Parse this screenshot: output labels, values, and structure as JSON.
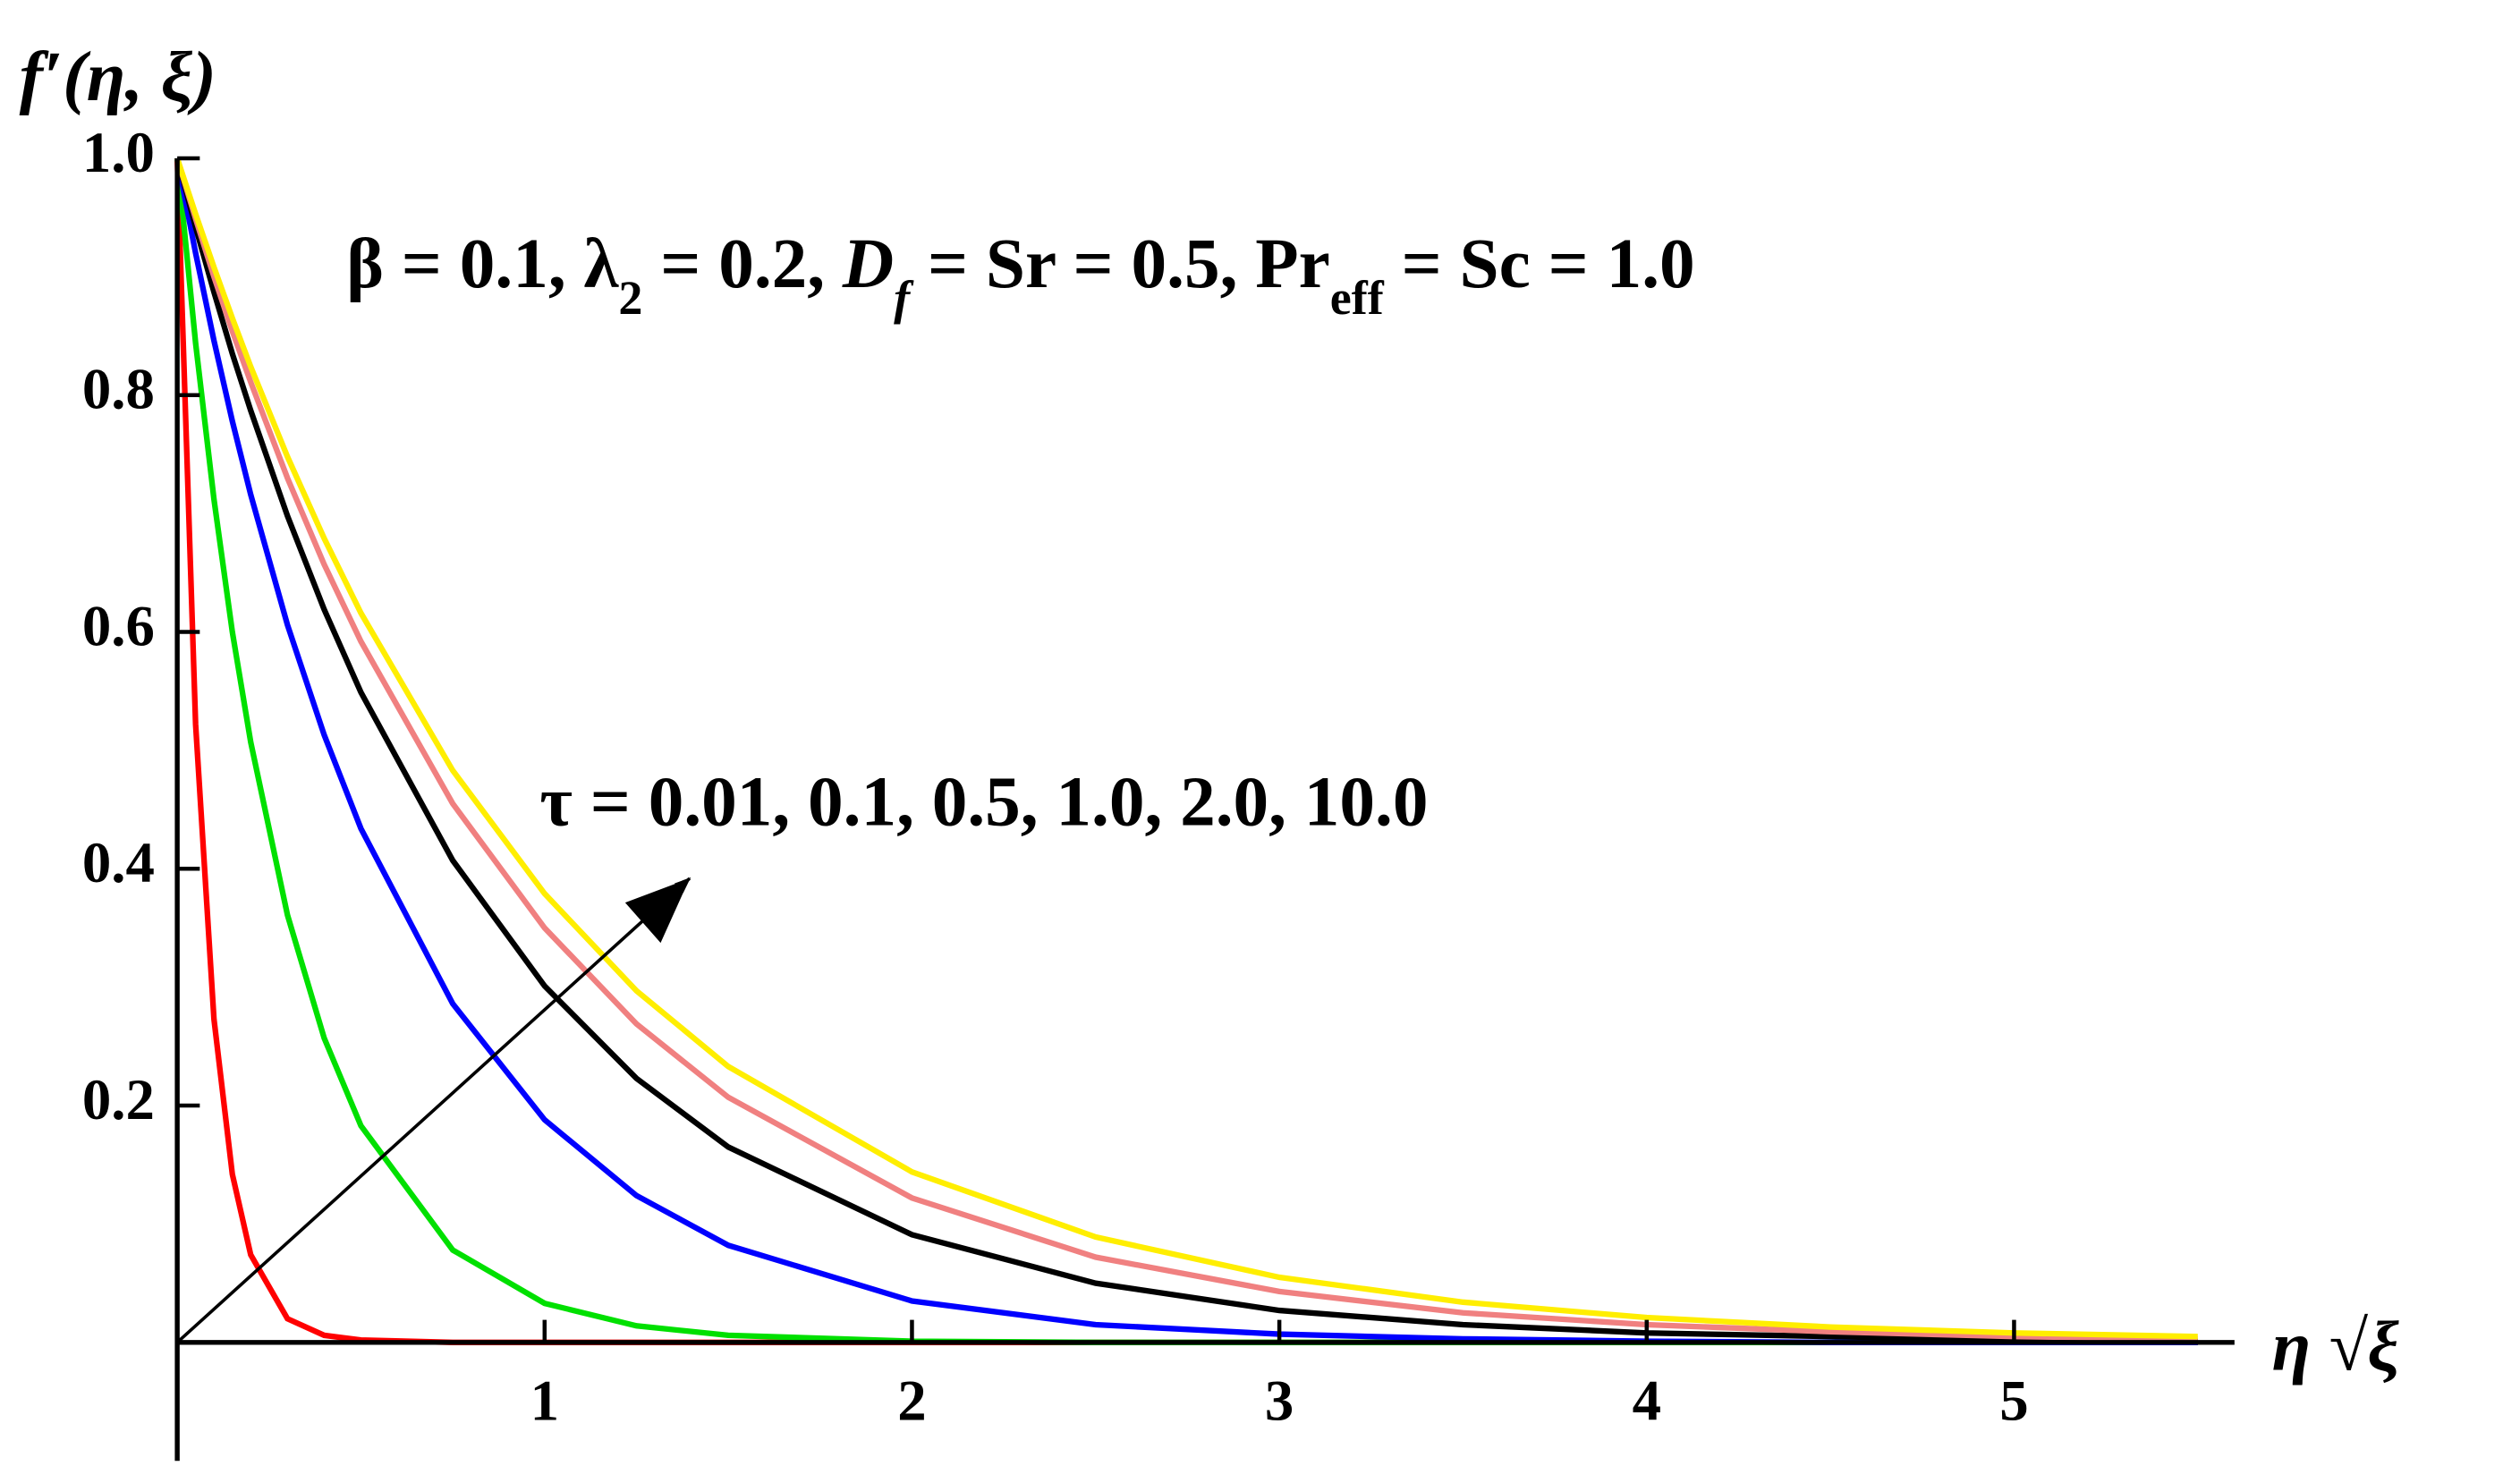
{
  "chart_data": {
    "type": "line",
    "y_label": "f′(η, ξ)",
    "x_label": "η √ξ",
    "annotation_parts": [
      "β = 0.1, λ",
      "2",
      " = 0.2, ",
      "D",
      "f",
      " = Sr = 0.5, Pr",
      "eff",
      " = Sc = 1.0"
    ],
    "arrow_label": "τ = 0.01, 0.1, 0.5, 1.0, 2.0, 10.0",
    "x": [
      0,
      0.05,
      0.1,
      0.15,
      0.2,
      0.3,
      0.4,
      0.5,
      0.75,
      1,
      1.25,
      1.5,
      2,
      2.5,
      3,
      3.5,
      4,
      4.5,
      5,
      5.5
    ],
    "series": [
      {
        "color": "#ff0000",
        "values": [
          1,
          0.522,
          0.273,
          0.142,
          0.074,
          0.02,
          0.006,
          0.002,
          0,
          0,
          0,
          0,
          0,
          0,
          0,
          0,
          0,
          0,
          0,
          0
        ]
      },
      {
        "color": "#00e000",
        "values": [
          1,
          0.844,
          0.712,
          0.6,
          0.507,
          0.361,
          0.257,
          0.183,
          0.078,
          0.033,
          0.014,
          0.006,
          0.001,
          0,
          0,
          0,
          0,
          0,
          0,
          0
        ]
      },
      {
        "color": "#0000ff",
        "values": [
          1,
          0.92,
          0.846,
          0.778,
          0.716,
          0.606,
          0.513,
          0.434,
          0.286,
          0.188,
          0.124,
          0.082,
          0.035,
          0.015,
          0.007,
          0.003,
          0.001,
          0,
          0,
          0
        ]
      },
      {
        "color": "#000000",
        "values": [
          1,
          0.942,
          0.887,
          0.835,
          0.787,
          0.698,
          0.619,
          0.549,
          0.407,
          0.301,
          0.223,
          0.165,
          0.091,
          0.05,
          0.027,
          0.015,
          0.008,
          0.005,
          0.002,
          0.001
        ]
      },
      {
        "color": "#f08080",
        "values": [
          1,
          0.949,
          0.9,
          0.854,
          0.811,
          0.73,
          0.657,
          0.592,
          0.455,
          0.35,
          0.269,
          0.207,
          0.122,
          0.072,
          0.043,
          0.025,
          0.015,
          0.009,
          0.005,
          0.003
        ]
      },
      {
        "color": "#ffee00",
        "values": [
          1,
          0.953,
          0.908,
          0.865,
          0.824,
          0.748,
          0.679,
          0.616,
          0.483,
          0.379,
          0.297,
          0.233,
          0.144,
          0.089,
          0.055,
          0.034,
          0.021,
          0.013,
          0.008,
          0.005
        ]
      }
    ],
    "xlim": [
      0,
      5.6
    ],
    "ylim": [
      -0.1,
      1
    ],
    "xticks": [
      1,
      2,
      3,
      4,
      5
    ],
    "yticks": [
      0.2,
      0.4,
      0.6,
      0.8,
      {
        "value": 1,
        "label": "1.0"
      }
    ]
  }
}
